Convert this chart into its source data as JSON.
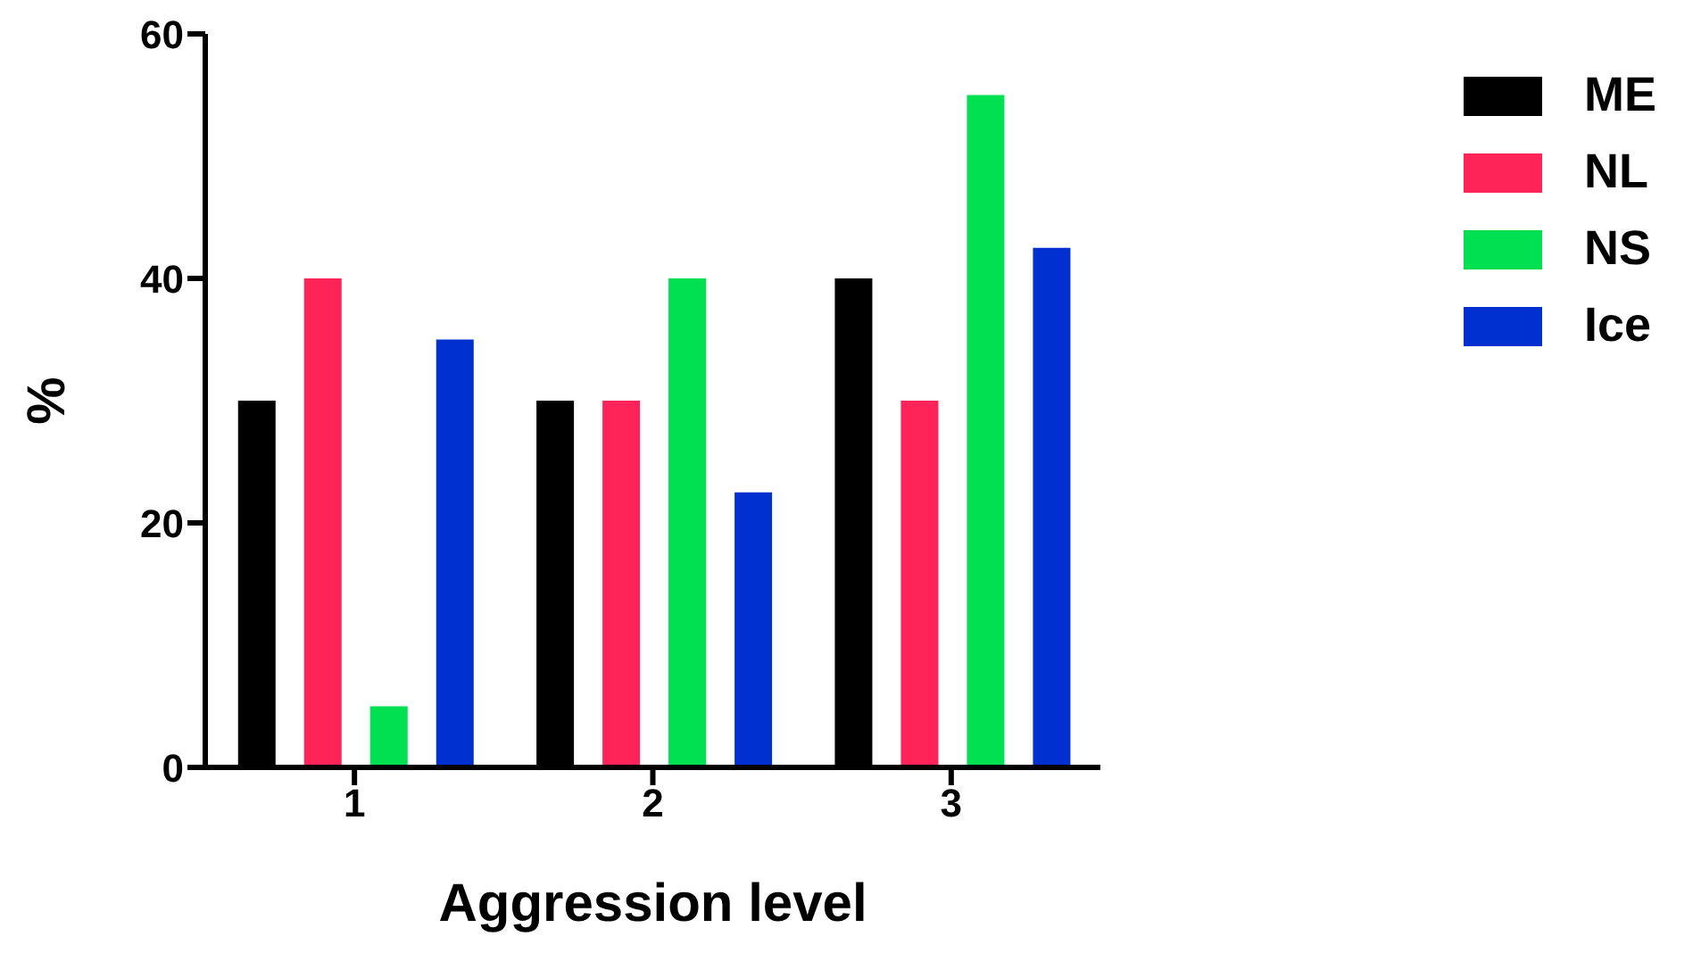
{
  "chart_data": {
    "type": "bar",
    "xlabel": "Aggression level",
    "ylabel": "%",
    "categories": [
      "1",
      "2",
      "3"
    ],
    "series": [
      {
        "name": "ME",
        "color": "#000000",
        "values": [
          30,
          30,
          40
        ]
      },
      {
        "name": "NL",
        "color": "#ff2458",
        "values": [
          40,
          30,
          30
        ]
      },
      {
        "name": "NS",
        "color": "#00e050",
        "values": [
          5,
          40,
          55
        ]
      },
      {
        "name": "Ice",
        "color": "#0030d0",
        "values": [
          35,
          22.5,
          42.5
        ]
      }
    ],
    "ylim": [
      0,
      60
    ],
    "yticks": [
      0,
      20,
      40,
      60
    ],
    "grid": false,
    "legend": "top right"
  }
}
